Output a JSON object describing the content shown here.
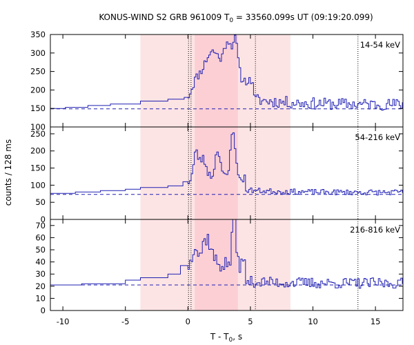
{
  "chart_data": {
    "type": "line",
    "title_prefix": "KONUS-WIND S2 GRB 961009 T",
    "title_sub": "0",
    "title_suffix": " = 33560.099s UT (09:19:20.099)",
    "xlabel_prefix": "T - T",
    "xlabel_sub": "0",
    "xlabel_suffix": ", s",
    "ylabel": "counts / 128 ms",
    "xlim": [
      -11,
      17.2
    ],
    "xticks": [
      -10,
      -5,
      0,
      5,
      10,
      15
    ],
    "xtick_labels": [
      "-10",
      "-5",
      "0",
      "5",
      "10",
      "15"
    ],
    "line_color": "#1e1eb4",
    "shade_light": [
      -3.8,
      8.2
    ],
    "shade_dark": [
      0.55,
      4.0
    ],
    "shade_light_color": "#fde4e4",
    "shade_dark_color": "#fbcfd4",
    "dotted_lines": [
      0.05,
      0.25,
      5.4,
      13.6
    ],
    "grid": false,
    "panels": [
      {
        "band": "14-54 keV",
        "ylim": [
          100,
          350
        ],
        "yticks": [
          100,
          150,
          200,
          250,
          300,
          350
        ],
        "ytick_labels": [
          "100",
          "150",
          "200",
          "250",
          "300",
          "350"
        ],
        "background": 149,
        "coarse_steps": [
          [
            -11,
            -9.8,
            150
          ],
          [
            -9.8,
            -8.0,
            153
          ],
          [
            -8.0,
            -6.2,
            158
          ],
          [
            -6.2,
            -3.8,
            162
          ],
          [
            -3.8,
            -1.6,
            170
          ],
          [
            -1.6,
            -0.3,
            175
          ],
          [
            -0.3,
            0.0,
            180
          ]
        ],
        "peak_times": [
          2.0,
          3.2,
          3.8
        ],
        "peak_heights": [
          80,
          95,
          100
        ],
        "peak_widths": [
          0.9,
          0.4,
          0.3
        ],
        "rise_level": 225,
        "noise": 12,
        "tail_start": 5.2,
        "tail_level": 175,
        "tail_noise": 16,
        "seed": 11
      },
      {
        "band": "54-216 keV",
        "ylim": [
          0,
          270
        ],
        "yticks": [
          0,
          50,
          100,
          150,
          200,
          250
        ],
        "ytick_labels": [
          "0",
          "50",
          "100",
          "150",
          "200",
          "250"
        ],
        "background": 73,
        "coarse_steps": [
          [
            -11,
            -9.0,
            76
          ],
          [
            -9.0,
            -7.0,
            80
          ],
          [
            -7.0,
            -5.0,
            84
          ],
          [
            -5.0,
            -3.8,
            88
          ],
          [
            -3.8,
            -1.6,
            93
          ],
          [
            -1.6,
            -0.4,
            98
          ],
          [
            -0.4,
            0.0,
            110
          ]
        ],
        "peak_times": [
          0.6,
          1.2,
          2.4,
          3.6
        ],
        "peak_heights": [
          70,
          55,
          85,
          150
        ],
        "peak_widths": [
          0.3,
          0.4,
          0.3,
          0.25
        ],
        "rise_level": 120,
        "noise": 14,
        "tail_start": 4.6,
        "tail_level": 86,
        "tail_noise": 8,
        "seed": 23
      },
      {
        "band": "216-816 keV",
        "ylim": [
          0,
          75
        ],
        "yticks": [
          0,
          10,
          20,
          30,
          40,
          50,
          60,
          70
        ],
        "ytick_labels": [
          "0",
          "10",
          "20",
          "30",
          "40",
          "50",
          "60",
          "70"
        ],
        "background": 21,
        "coarse_steps": [
          [
            -11,
            -8.5,
            21
          ],
          [
            -8.5,
            -5.0,
            22
          ],
          [
            -5.0,
            -3.8,
            25
          ],
          [
            -3.8,
            -1.6,
            27
          ],
          [
            -1.6,
            -0.6,
            30
          ],
          [
            -0.6,
            0.0,
            37
          ]
        ],
        "peak_times": [
          0.5,
          1.5,
          3.7
        ],
        "peak_heights": [
          20,
          22,
          44
        ],
        "peak_widths": [
          0.3,
          0.5,
          0.2
        ],
        "rise_level": 38,
        "noise": 7,
        "tail_start": 4.6,
        "tail_level": 24,
        "tail_noise": 4.5,
        "seed": 37
      }
    ]
  }
}
